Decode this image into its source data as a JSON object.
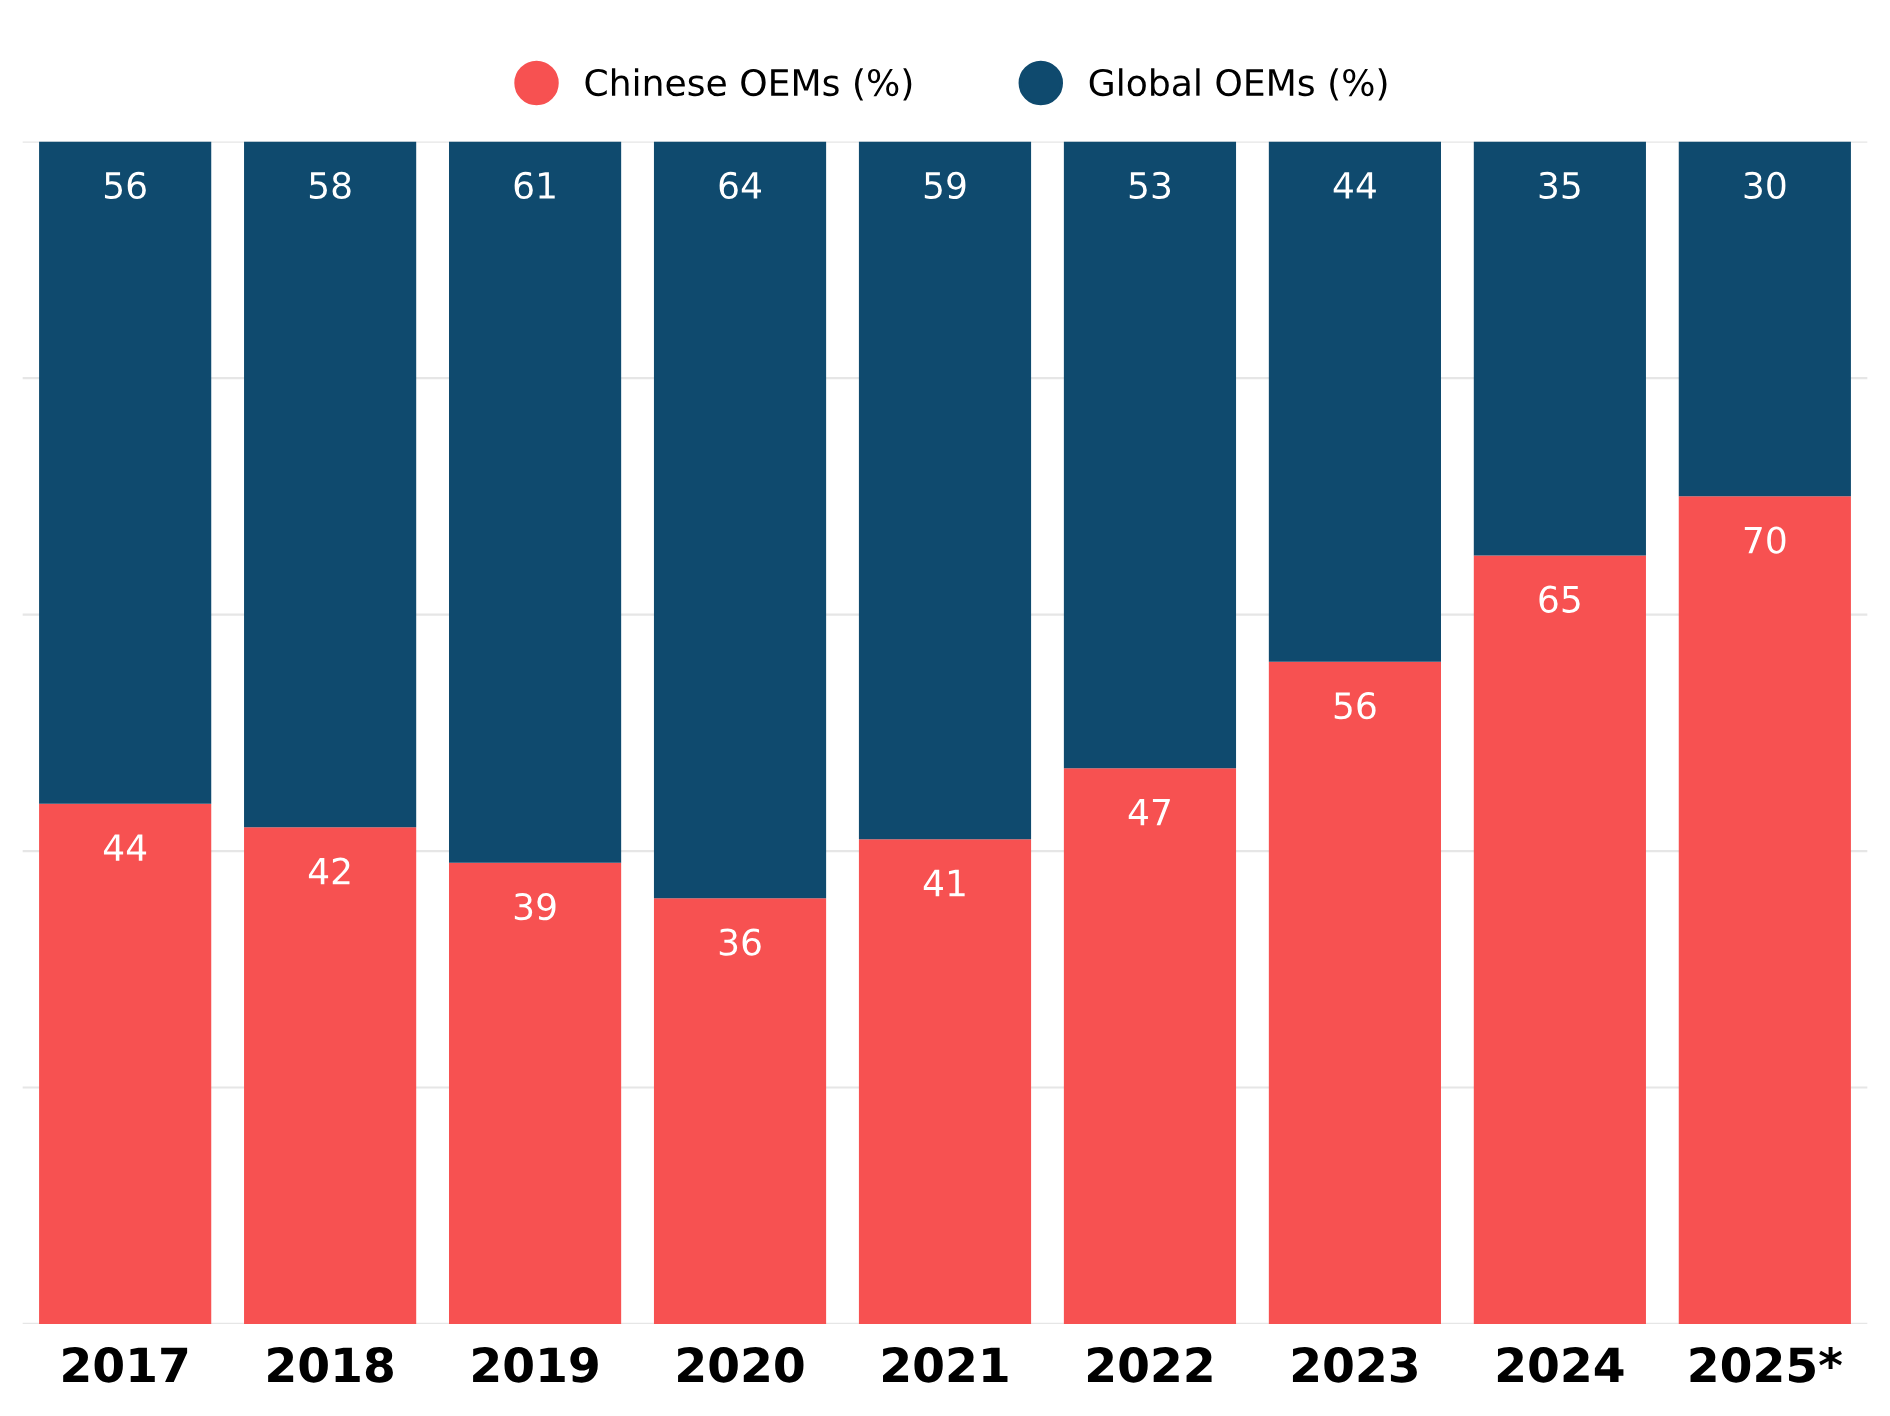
{
  "chart_data": {
    "type": "bar",
    "stacked": true,
    "categories": [
      "2017",
      "2018",
      "2019",
      "2020",
      "2021",
      "2022",
      "2023",
      "2024",
      "2025*"
    ],
    "series": [
      {
        "name": "Chinese OEMs (%)",
        "color": "#f75151",
        "values": [
          44,
          42,
          39,
          36,
          41,
          47,
          56,
          65,
          70
        ]
      },
      {
        "name": "Global OEMs (%)",
        "color": "#0f4a6e",
        "values": [
          56,
          58,
          61,
          64,
          59,
          53,
          44,
          35,
          30
        ]
      }
    ],
    "ylim": [
      0,
      100
    ],
    "yticks": [
      {
        "value": 0,
        "label": null
      },
      {
        "value": 20,
        "label": null
      },
      {
        "value": 40,
        "label": null
      },
      {
        "value": 60,
        "label": null
      },
      {
        "value": 80,
        "label": null
      },
      {
        "value": 100,
        "label": null
      }
    ],
    "grid": "y",
    "tick_labels": "x",
    "legend": "top",
    "data_labels": true
  }
}
